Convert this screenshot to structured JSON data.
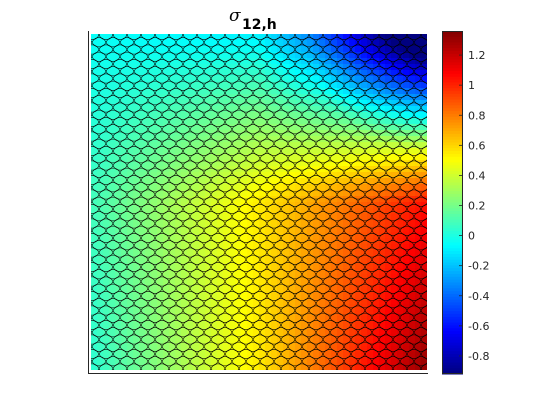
{
  "chart_data": {
    "type": "heatmap",
    "title": {
      "symbol": "σ",
      "subscript": "12,h"
    },
    "xlabel": "",
    "ylabel": "",
    "colormap": "jet",
    "mesh": "hexagonal (Voronoi) cells, black edges",
    "colorbar": {
      "clim": [
        -0.92,
        1.36
      ],
      "ticks": [
        -0.8,
        -0.6,
        -0.4,
        -0.2,
        0,
        0.2,
        0.4,
        0.6,
        0.8,
        1,
        1.2
      ],
      "tick_labels": [
        "-0.8",
        "-0.6",
        "-0.4",
        "-0.2",
        "0",
        "0.2",
        "0.4",
        "0.6",
        "0.8",
        "1",
        "1.2"
      ]
    },
    "field": {
      "description": "sigma_12 over unit square; x from left to right, y from bottom to top",
      "samples": [
        {
          "x": 0.0,
          "y": 0.0,
          "value": 0.03
        },
        {
          "x": 0.5,
          "y": 0.0,
          "value": 0.55
        },
        {
          "x": 1.0,
          "y": 0.0,
          "value": 1.32
        },
        {
          "x": 0.0,
          "y": 0.5,
          "value": 0.08
        },
        {
          "x": 0.5,
          "y": 0.5,
          "value": 0.55
        },
        {
          "x": 1.0,
          "y": 0.5,
          "value": 1.05
        },
        {
          "x": 0.0,
          "y": 1.0,
          "value": -0.05
        },
        {
          "x": 0.5,
          "y": 1.0,
          "value": -0.1
        },
        {
          "x": 1.0,
          "y": 1.0,
          "value": -0.9
        }
      ]
    }
  }
}
